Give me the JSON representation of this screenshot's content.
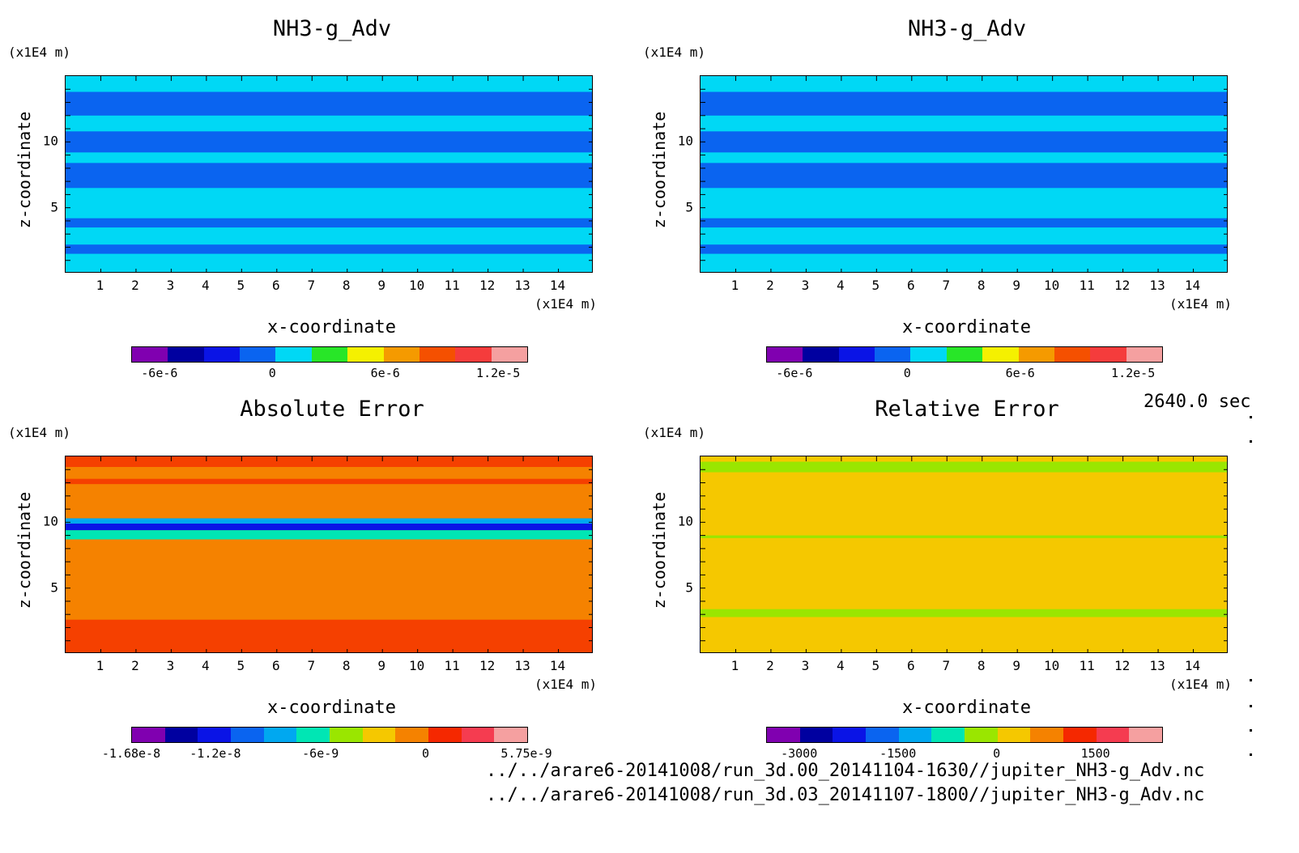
{
  "time_label": "2640.0 sec",
  "footer_lines": [
    "../../arare6-20141008/run_3d.00_20141104-1630//jupiter_NH3-g_Adv.nc",
    "../../arare6-20141008/run_3d.03_20141107-1800//jupiter_NH3-g_Adv.nc"
  ],
  "chart_data": [
    {
      "type": "heatmap",
      "title": "NH3-g_Adv",
      "xlabel": "x-coordinate",
      "ylabel": "z-coordinate",
      "x_unit": "(x1E4 m)",
      "z_unit": "(x1E4 m)",
      "xticks": [
        "1",
        "2",
        "3",
        "4",
        "5",
        "6",
        "7",
        "8",
        "9",
        "10",
        "11",
        "12",
        "13",
        "14"
      ],
      "zticks": [
        "5",
        "10"
      ],
      "xlim": [
        0,
        15
      ],
      "zlim": [
        0,
        15
      ],
      "colorbar": {
        "colors": [
          "#8000b0",
          "#0000a0",
          "#0a14e6",
          "#0a64f0",
          "#00d8f5",
          "#28e628",
          "#f5f000",
          "#f59a00",
          "#f55000",
          "#f53c3c",
          "#f5a0a0"
        ],
        "labels": [
          "-6e-6",
          "0",
          "6e-6",
          "1.2e-5"
        ],
        "label_values": [
          -6e-06,
          0,
          6e-06,
          1.2e-05
        ],
        "range": [
          -7.5e-06,
          1.35e-05
        ]
      },
      "background": "#00d8f5",
      "bands": [
        {
          "z": [
            9.2,
            10.8
          ],
          "color": "#0a64f0"
        },
        {
          "z": [
            12.0,
            13.8
          ],
          "color": "#0a64f0"
        },
        {
          "z": [
            6.5,
            8.4
          ],
          "color": "#0a64f0"
        },
        {
          "z": [
            3.5,
            4.2
          ],
          "color": "#0a64f0"
        },
        {
          "z": [
            1.5,
            2.2
          ],
          "color": "#0a64f0"
        }
      ]
    },
    {
      "type": "heatmap",
      "title": "NH3-g_Adv",
      "xlabel": "x-coordinate",
      "ylabel": "z-coordinate",
      "x_unit": "(x1E4 m)",
      "z_unit": "(x1E4 m)",
      "xticks": [
        "1",
        "2",
        "3",
        "4",
        "5",
        "6",
        "7",
        "8",
        "9",
        "10",
        "11",
        "12",
        "13",
        "14"
      ],
      "zticks": [
        "5",
        "10"
      ],
      "xlim": [
        0,
        15
      ],
      "zlim": [
        0,
        15
      ],
      "colorbar": {
        "colors": [
          "#8000b0",
          "#0000a0",
          "#0a14e6",
          "#0a64f0",
          "#00d8f5",
          "#28e628",
          "#f5f000",
          "#f59a00",
          "#f55000",
          "#f53c3c",
          "#f5a0a0"
        ],
        "labels": [
          "-6e-6",
          "0",
          "6e-6",
          "1.2e-5"
        ],
        "label_values": [
          -6e-06,
          0,
          6e-06,
          1.2e-05
        ],
        "range": [
          -7.5e-06,
          1.35e-05
        ]
      },
      "background": "#00d8f5",
      "bands": [
        {
          "z": [
            9.2,
            10.8
          ],
          "color": "#0a64f0"
        },
        {
          "z": [
            12.0,
            13.8
          ],
          "color": "#0a64f0"
        },
        {
          "z": [
            6.5,
            8.4
          ],
          "color": "#0a64f0"
        },
        {
          "z": [
            3.5,
            4.2
          ],
          "color": "#0a64f0"
        },
        {
          "z": [
            1.5,
            2.2
          ],
          "color": "#0a64f0"
        }
      ]
    },
    {
      "type": "heatmap",
      "title": "Absolute Error",
      "xlabel": "x-coordinate",
      "ylabel": "z-coordinate",
      "x_unit": "(x1E4 m)",
      "z_unit": "(x1E4 m)",
      "xticks": [
        "1",
        "2",
        "3",
        "4",
        "5",
        "6",
        "7",
        "8",
        "9",
        "10",
        "11",
        "12",
        "13",
        "14"
      ],
      "zticks": [
        "5",
        "10"
      ],
      "xlim": [
        0,
        15
      ],
      "zlim": [
        0,
        15
      ],
      "colorbar": {
        "colors": [
          "#8000b0",
          "#0000a0",
          "#0a14e6",
          "#0a64f0",
          "#00a8f0",
          "#00e6b4",
          "#9ae600",
          "#f5c800",
          "#f58200",
          "#f52800",
          "#f53c50",
          "#f5a0a0"
        ],
        "labels": [
          "-1.68e-8",
          "-1.2e-8",
          "-6e-9",
          "0",
          "5.75e-9"
        ],
        "label_values": [
          -1.68e-08,
          -1.2e-08,
          -6e-09,
          0,
          5.75e-09
        ],
        "range": [
          -1.68e-08,
          5.75e-09
        ]
      },
      "background": "#f58200",
      "bands": [
        {
          "z": [
            0,
            2.6
          ],
          "color": "#f54000"
        },
        {
          "z": [
            8.7,
            9.4
          ],
          "color": "#00e6b4"
        },
        {
          "z": [
            9.4,
            9.9
          ],
          "color": "#0a14e6"
        },
        {
          "z": [
            9.9,
            10.3
          ],
          "color": "#00a8f0"
        },
        {
          "z": [
            14.2,
            15
          ],
          "color": "#f54000"
        },
        {
          "z": [
            12.9,
            13.3
          ],
          "color": "#f54000"
        }
      ]
    },
    {
      "type": "heatmap",
      "title": "Relative Error",
      "xlabel": "x-coordinate",
      "ylabel": "z-coordinate",
      "x_unit": "(x1E4 m)",
      "z_unit": "(x1E4 m)",
      "xticks": [
        "1",
        "2",
        "3",
        "4",
        "5",
        "6",
        "7",
        "8",
        "9",
        "10",
        "11",
        "12",
        "13",
        "14"
      ],
      "zticks": [
        "5",
        "10"
      ],
      "xlim": [
        0,
        15
      ],
      "zlim": [
        0,
        15
      ],
      "colorbar": {
        "colors": [
          "#8000b0",
          "#0000a0",
          "#0a14e6",
          "#0a64f0",
          "#00a8f0",
          "#00e6b4",
          "#9ae600",
          "#f5c800",
          "#f58200",
          "#f52800",
          "#f53c50",
          "#f5a0a0"
        ],
        "labels": [
          "-3000",
          "-1500",
          "0",
          "1500"
        ],
        "label_values": [
          -3000,
          -1500,
          0,
          1500
        ],
        "range": [
          -3500,
          2500
        ]
      },
      "background": "#f5c800",
      "bands": [
        {
          "z": [
            13.8,
            14.6
          ],
          "color": "#9ae600"
        },
        {
          "z": [
            8.8,
            9.0
          ],
          "color": "#9ae600"
        },
        {
          "z": [
            2.8,
            3.4
          ],
          "color": "#9ae600"
        }
      ]
    }
  ]
}
